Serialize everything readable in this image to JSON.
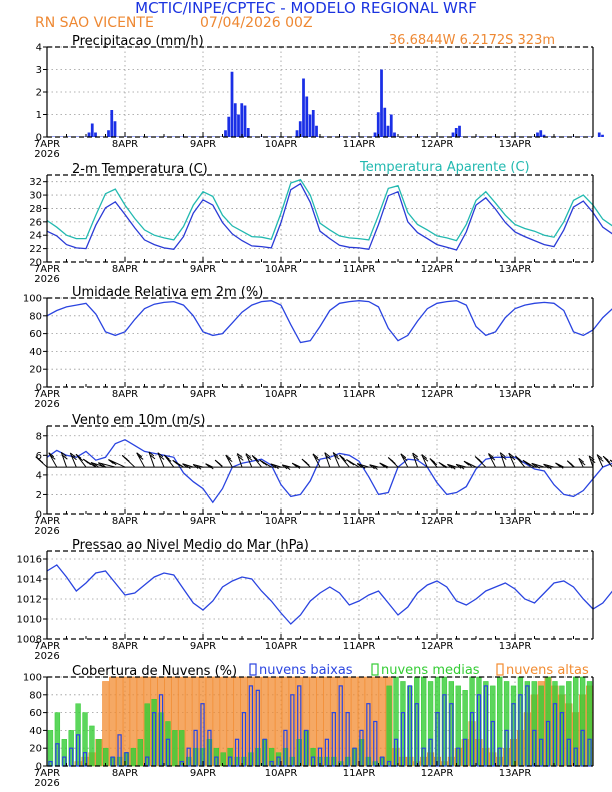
{
  "header": {
    "title": "MCTIC/INPE/CPTEC - MODELO REGIONAL WRF",
    "location": "RN SAO VICENTE",
    "run": "07/04/2026 00Z",
    "coords": "36.6844W 6.2172S 323m"
  },
  "colors": {
    "precip": "#1a2fe6",
    "temp": "#2a3bd6",
    "apparent": "#22b9b0",
    "humidity": "#2a44e0",
    "wind": "#2a44e0",
    "pressure": "#2a44e0",
    "cloud_low": "#2a44e0",
    "cloud_mid": "#33cc33",
    "cloud_high": "#f28b30",
    "title_blue": "#1a33e0",
    "title_orange": "#ee8833",
    "apparent_label": "#22b9b0"
  },
  "x_axis": {
    "day_labels": [
      "7APR",
      "8APR",
      "9APR",
      "10APR",
      "11APR",
      "12APR",
      "13APR"
    ],
    "year_label": "2026"
  },
  "chart_data": [
    {
      "type": "bar",
      "title": "Precipitacao (mm/h)",
      "ylim": [
        0,
        4
      ],
      "yticks": [
        0,
        1,
        2,
        3,
        4
      ],
      "hours_per_value": 1,
      "events": [
        {
          "hour": 13,
          "value": 0.2
        },
        {
          "hour": 14,
          "value": 0.6
        },
        {
          "hour": 15,
          "value": 0.2
        },
        {
          "hour": 19,
          "value": 0.3
        },
        {
          "hour": 20,
          "value": 1.2
        },
        {
          "hour": 21,
          "value": 0.7
        },
        {
          "hour": 55,
          "value": 0.3
        },
        {
          "hour": 56,
          "value": 0.9
        },
        {
          "hour": 57,
          "value": 2.9
        },
        {
          "hour": 58,
          "value": 1.5
        },
        {
          "hour": 59,
          "value": 1.0
        },
        {
          "hour": 60,
          "value": 1.5
        },
        {
          "hour": 61,
          "value": 1.4
        },
        {
          "hour": 62,
          "value": 0.4
        },
        {
          "hour": 77,
          "value": 0.3
        },
        {
          "hour": 78,
          "value": 0.7
        },
        {
          "hour": 79,
          "value": 2.6
        },
        {
          "hour": 80,
          "value": 1.8
        },
        {
          "hour": 81,
          "value": 1.0
        },
        {
          "hour": 82,
          "value": 1.2
        },
        {
          "hour": 83,
          "value": 0.5
        },
        {
          "hour": 101,
          "value": 0.2
        },
        {
          "hour": 102,
          "value": 1.1
        },
        {
          "hour": 103,
          "value": 3.0
        },
        {
          "hour": 104,
          "value": 1.3
        },
        {
          "hour": 105,
          "value": 0.5
        },
        {
          "hour": 106,
          "value": 1.0
        },
        {
          "hour": 107,
          "value": 0.2
        },
        {
          "hour": 125,
          "value": 0.2
        },
        {
          "hour": 126,
          "value": 0.4
        },
        {
          "hour": 127,
          "value": 0.5
        },
        {
          "hour": 151,
          "value": 0.2
        },
        {
          "hour": 152,
          "value": 0.3
        },
        {
          "hour": 153,
          "value": 0.1
        },
        {
          "hour": 170,
          "value": 0.2
        },
        {
          "hour": 171,
          "value": 0.1
        },
        {
          "hour": 182,
          "value": 0.3
        },
        {
          "hour": 183,
          "value": 0.2
        },
        {
          "hour": 194,
          "value": 0.1
        },
        {
          "hour": 195,
          "value": 0.2
        },
        {
          "hour": 196,
          "value": 0.2
        },
        {
          "hour": 197,
          "value": 0.1
        },
        {
          "hour": 218,
          "value": 0.2
        },
        {
          "hour": 221,
          "value": 0.1
        },
        {
          "hour": 222,
          "value": 0.1
        }
      ],
      "base_value": 0.02
    },
    {
      "type": "line",
      "title": "2-m Temperatura (C)",
      "ylim": [
        20,
        33
      ],
      "yticks": [
        20,
        22,
        24,
        26,
        28,
        30,
        32
      ],
      "hours_per_point": 3,
      "series": [
        {
          "name": "",
          "key": "temp",
          "values": [
            24.6,
            23.9,
            22.6,
            22.1,
            22.0,
            25.5,
            28.1,
            29.0,
            27.1,
            25.1,
            23.3,
            22.6,
            22.1,
            21.9,
            23.8,
            27.3,
            29.3,
            28.5,
            25.9,
            24.2,
            23.2,
            22.4,
            22.3,
            22.1,
            25.9,
            30.8,
            31.7,
            28.9,
            24.6,
            23.5,
            22.5,
            22.2,
            22.1,
            21.9,
            25.6,
            29.9,
            30.5,
            26.0,
            24.4,
            23.5,
            22.6,
            22.2,
            21.8,
            24.5,
            28.5,
            29.6,
            27.9,
            25.9,
            24.5,
            23.8,
            23.2,
            22.6,
            22.3,
            24.8,
            28.2,
            29.1,
            27.4,
            25.2,
            24.2,
            23.4,
            22.7,
            22.5,
            22.3,
            24.5,
            28.8,
            29.4,
            27.0,
            25.2,
            24.0,
            23.6,
            23.3,
            22.7,
            22.3,
            24.0,
            26.3,
            26.3,
            24.7,
            24.2
          ]
        },
        {
          "name": "Temperatura Aparente (C)",
          "key": "apparent",
          "values": [
            26.2,
            25.2,
            24.0,
            23.5,
            23.5,
            27.0,
            30.2,
            30.9,
            28.5,
            26.5,
            24.8,
            24.0,
            23.6,
            23.3,
            25.3,
            28.5,
            30.5,
            29.8,
            27.0,
            25.4,
            24.6,
            23.8,
            23.7,
            23.4,
            27.3,
            31.8,
            32.3,
            30.0,
            25.8,
            24.8,
            23.9,
            23.6,
            23.5,
            23.3,
            27.0,
            31.0,
            31.4,
            27.4,
            25.6,
            24.8,
            23.9,
            23.6,
            23.2,
            25.6,
            29.2,
            30.5,
            28.8,
            27.0,
            25.6,
            25.0,
            24.6,
            24.0,
            23.7,
            26.0,
            29.2,
            30.0,
            28.5,
            26.4,
            25.4,
            24.7,
            24.0,
            23.8,
            23.7,
            25.8,
            29.2,
            30.0,
            28.0,
            26.6,
            25.3,
            24.9,
            24.7,
            24.1,
            23.8,
            25.4,
            27.5,
            27.2,
            25.6,
            25.2
          ]
        }
      ]
    },
    {
      "type": "line",
      "title": "Umidade Relativa em 2m (%)",
      "ylim": [
        0,
        100
      ],
      "yticks": [
        0,
        20,
        40,
        60,
        80,
        100
      ],
      "hours_per_point": 3,
      "series": [
        {
          "name": "",
          "key": "humidity",
          "values": [
            80,
            86,
            90,
            92,
            94,
            82,
            62,
            58,
            62,
            76,
            88,
            93,
            95,
            96,
            92,
            80,
            62,
            58,
            60,
            72,
            84,
            92,
            96,
            97,
            92,
            70,
            50,
            52,
            68,
            86,
            94,
            96,
            97,
            96,
            90,
            66,
            52,
            58,
            74,
            88,
            94,
            96,
            97,
            92,
            68,
            58,
            62,
            78,
            88,
            92,
            94,
            95,
            94,
            86,
            62,
            58,
            64,
            78,
            88,
            92,
            94,
            95,
            95,
            88,
            60,
            46,
            56,
            76,
            88,
            92,
            93,
            95,
            95,
            90,
            74,
            62,
            70,
            84,
            90
          ]
        }
      ]
    },
    {
      "type": "line",
      "title": "Vento em 10m (m/s)",
      "ylim": [
        0,
        9
      ],
      "yticks": [
        0,
        2,
        4,
        6,
        8
      ],
      "hours_per_point": 3,
      "series": [
        {
          "name": "",
          "key": "wind",
          "values": [
            5.8,
            6.5,
            6.0,
            5.8,
            6.4,
            5.5,
            5.8,
            7.2,
            7.6,
            7.0,
            6.4,
            6.2,
            6.0,
            5.8,
            4.2,
            3.3,
            2.6,
            1.2,
            2.6,
            4.8,
            5.2,
            5.4,
            5.6,
            5.0,
            3.0,
            1.8,
            2.0,
            3.4,
            5.6,
            5.8,
            6.2,
            6.0,
            5.4,
            3.8,
            2.0,
            2.2,
            4.8,
            5.6,
            5.5,
            4.8,
            3.2,
            2.0,
            2.2,
            2.8,
            4.6,
            5.6,
            5.8,
            5.8,
            5.8,
            5.2,
            4.6,
            4.4,
            3.0,
            2.0,
            1.8,
            2.4,
            3.6,
            4.8,
            5.2,
            5.0,
            4.6,
            4.2,
            3.0,
            2.0,
            2.8,
            4.8,
            5.6,
            5.4,
            4.4,
            3.6,
            2.6,
            2.2,
            3.2,
            4.2,
            4.6,
            4.2,
            2.6,
            0.6,
            0.3
          ]
        }
      ],
      "barb_baseline": 4.8
    },
    {
      "type": "line",
      "title": "Pressao ao Nivel Medio do Mar (hPa)",
      "ylim": [
        1008,
        1016.8
      ],
      "yticks": [
        1008,
        1010,
        1012,
        1014,
        1016
      ],
      "hours_per_point": 3,
      "series": [
        {
          "name": "",
          "key": "pressure",
          "values": [
            1014.8,
            1015.4,
            1014.2,
            1012.8,
            1013.6,
            1014.6,
            1014.8,
            1013.6,
            1012.4,
            1012.6,
            1013.4,
            1014.2,
            1014.6,
            1014.4,
            1013.0,
            1011.6,
            1010.9,
            1011.8,
            1013.2,
            1013.8,
            1014.2,
            1014.0,
            1012.8,
            1011.8,
            1010.6,
            1009.5,
            1010.4,
            1011.8,
            1012.6,
            1013.2,
            1012.6,
            1011.4,
            1011.8,
            1012.4,
            1012.8,
            1011.6,
            1010.4,
            1011.2,
            1012.6,
            1013.4,
            1013.8,
            1013.2,
            1011.8,
            1011.4,
            1012.0,
            1012.8,
            1013.2,
            1013.6,
            1013.0,
            1012.0,
            1011.6,
            1012.6,
            1013.6,
            1013.8,
            1013.2,
            1012.0,
            1011.0,
            1011.6,
            1012.8,
            1013.4,
            1012.6,
            1011.2,
            1010.4,
            1011.4,
            1012.8,
            1013.4,
            1012.8,
            1012.2,
            1012.8,
            1013.2,
            1012.2,
            1011.2,
            1010.2,
            1010.4,
            1011.8,
            1012.0
          ]
        }
      ]
    },
    {
      "type": "bar",
      "title": "Cobertura de Nuvens (%)",
      "ylim": [
        0,
        100
      ],
      "yticks": [
        0,
        20,
        40,
        60,
        80,
        100
      ],
      "legend": [
        "nuvens baixas",
        "nuvens medias",
        "nuvens altas"
      ],
      "hours_per_point": 3,
      "series": [
        {
          "name": "nuvens altas",
          "key": "cloud_high",
          "values": [
            0,
            0,
            0,
            0,
            5,
            10,
            15,
            30,
            95,
            100,
            100,
            100,
            100,
            100,
            100,
            100,
            100,
            100,
            100,
            100,
            100,
            100,
            100,
            100,
            100,
            100,
            100,
            100,
            100,
            100,
            100,
            100,
            100,
            100,
            100,
            100,
            100,
            100,
            100,
            100,
            100,
            100,
            100,
            100,
            100,
            100,
            100,
            100,
            100,
            100,
            20,
            10,
            10,
            5,
            10,
            15,
            10,
            5,
            10,
            20,
            30,
            50,
            30,
            20,
            15,
            10,
            20,
            30,
            40,
            60,
            80,
            95,
            100,
            90,
            80,
            70,
            60,
            80,
            90
          ]
        },
        {
          "name": "nuvens medias",
          "key": "cloud_mid",
          "values": [
            40,
            60,
            30,
            40,
            70,
            60,
            45,
            30,
            20,
            10,
            10,
            15,
            20,
            30,
            70,
            75,
            60,
            50,
            40,
            40,
            10,
            20,
            20,
            30,
            20,
            15,
            20,
            10,
            10,
            15,
            20,
            30,
            20,
            15,
            20,
            10,
            30,
            40,
            20,
            10,
            10,
            10,
            5,
            10,
            20,
            30,
            10,
            5,
            10,
            90,
            100,
            95,
            90,
            100,
            100,
            95,
            100,
            100,
            95,
            90,
            85,
            100,
            100,
            95,
            90,
            100,
            95,
            90,
            100,
            95,
            95,
            90,
            100,
            95,
            90,
            95,
            100,
            100,
            95
          ]
        },
        {
          "name": "nuvens baixas",
          "key": "cloud_low",
          "values": [
            5,
            25,
            10,
            20,
            35,
            15,
            0,
            0,
            0,
            10,
            35,
            15,
            0,
            0,
            10,
            60,
            80,
            30,
            0,
            5,
            20,
            40,
            70,
            40,
            10,
            0,
            10,
            30,
            60,
            90,
            85,
            30,
            5,
            10,
            40,
            80,
            90,
            40,
            10,
            20,
            30,
            60,
            90,
            60,
            20,
            40,
            70,
            50,
            10,
            5,
            30,
            60,
            90,
            70,
            20,
            30,
            60,
            80,
            70,
            20,
            30,
            60,
            80,
            90,
            50,
            20,
            40,
            70,
            80,
            90,
            40,
            30,
            50,
            70,
            60,
            30,
            20,
            40,
            30
          ]
        }
      ]
    }
  ]
}
